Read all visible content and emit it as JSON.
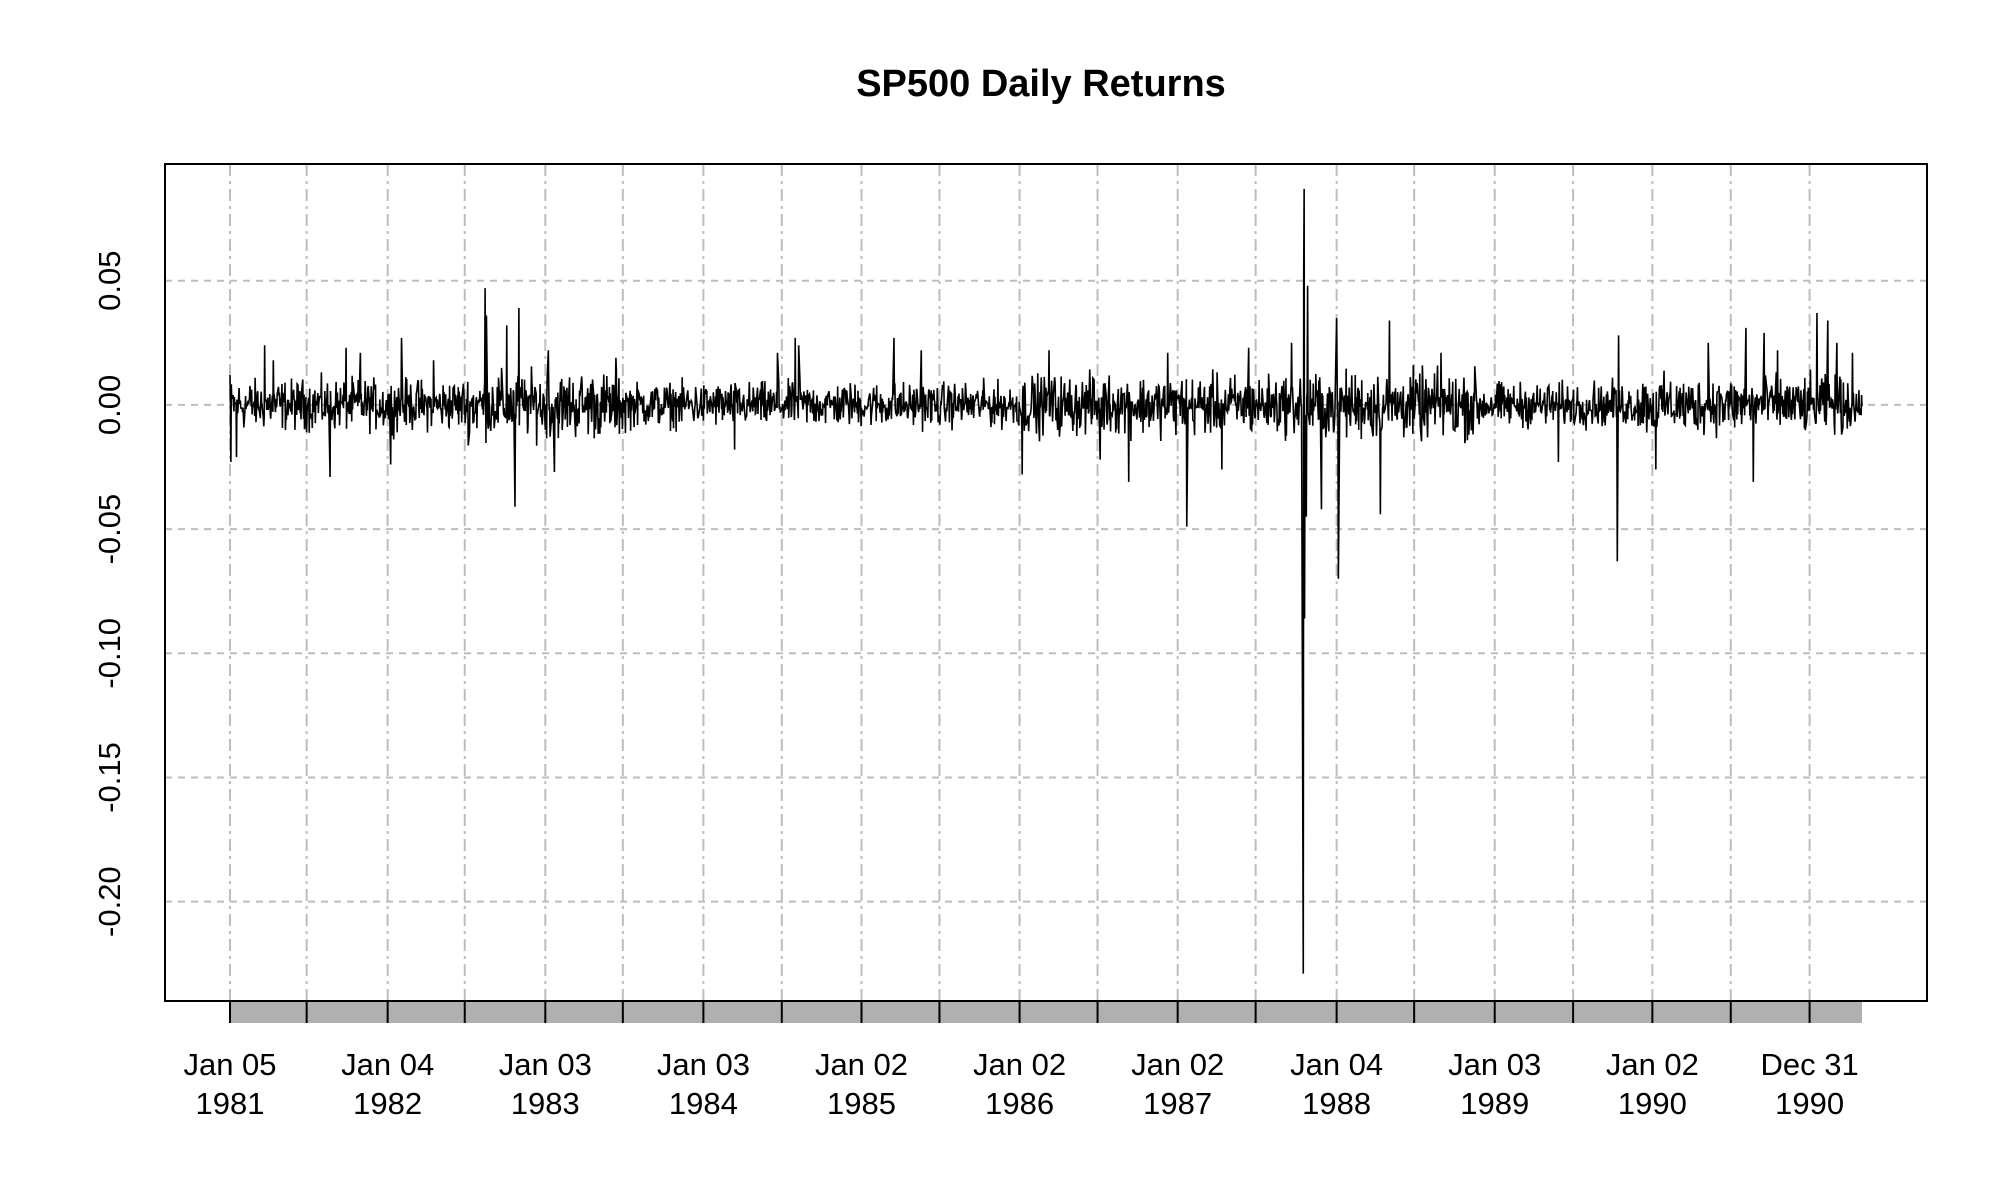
{
  "chart_data": {
    "type": "line",
    "title": "SP500 Daily Returns",
    "xlabel": "",
    "ylabel": "",
    "x_range": [
      "1981-01-05",
      "1991-05-01"
    ],
    "ylim": [
      -0.24,
      0.097
    ],
    "y_ticks": [
      {
        "value": 0.05,
        "label": "0.05"
      },
      {
        "value": 0.0,
        "label": "0.00"
      },
      {
        "value": -0.05,
        "label": "-0.05"
      },
      {
        "value": -0.1,
        "label": "-0.10"
      },
      {
        "value": -0.15,
        "label": "-0.15"
      },
      {
        "value": -0.2,
        "label": "-0.20"
      }
    ],
    "x_ticks": [
      {
        "date": "1981-01-05",
        "line1": "Jan 05",
        "line2": "1981"
      },
      {
        "date": "1982-01-04",
        "line1": "Jan 04",
        "line2": "1982"
      },
      {
        "date": "1983-01-03",
        "line1": "Jan 03",
        "line2": "1983"
      },
      {
        "date": "1984-01-03",
        "line1": "Jan 03",
        "line2": "1984"
      },
      {
        "date": "1985-01-02",
        "line1": "Jan 02",
        "line2": "1985"
      },
      {
        "date": "1986-01-02",
        "line1": "Jan 02",
        "line2": "1986"
      },
      {
        "date": "1987-01-02",
        "line1": "Jan 02",
        "line2": "1987"
      },
      {
        "date": "1988-01-04",
        "line1": "Jan 04",
        "line2": "1988"
      },
      {
        "date": "1989-01-03",
        "line1": "Jan 03",
        "line2": "1989"
      },
      {
        "date": "1990-01-02",
        "line1": "Jan 02",
        "line2": "1990"
      },
      {
        "date": "1990-12-31",
        "line1": "Dec 31",
        "line2": "1990"
      }
    ],
    "minor_ticks": [
      "1981-07-01",
      "1982-07-01",
      "1983-07-01",
      "1984-07-02",
      "1985-07-01",
      "1986-07-01",
      "1987-07-01",
      "1988-07-01",
      "1989-07-03",
      "1990-07-02"
    ],
    "grid": true,
    "series": [
      {
        "values": [
          {
            "date": "1981-01-05",
            "value": 0.012
          },
          {
            "date": "1981-01-07",
            "value": -0.023
          },
          {
            "date": "1981-01-20",
            "value": -0.021
          },
          {
            "date": "1981-03-26",
            "value": 0.024
          },
          {
            "date": "1981-04-15",
            "value": 0.018
          },
          {
            "date": "1981-08-24",
            "value": -0.029
          },
          {
            "date": "1981-09-30",
            "value": 0.023
          },
          {
            "date": "1981-11-02",
            "value": 0.021
          },
          {
            "date": "1982-01-11",
            "value": -0.024
          },
          {
            "date": "1982-02-05",
            "value": 0.027
          },
          {
            "date": "1982-04-20",
            "value": 0.018
          },
          {
            "date": "1982-08-17",
            "value": 0.047
          },
          {
            "date": "1982-08-20",
            "value": 0.036
          },
          {
            "date": "1982-10-06",
            "value": 0.032
          },
          {
            "date": "1982-10-25",
            "value": -0.041
          },
          {
            "date": "1982-11-03",
            "value": 0.039
          },
          {
            "date": "1983-01-24",
            "value": -0.027
          },
          {
            "date": "1983-01-10",
            "value": 0.022
          },
          {
            "date": "1983-06-15",
            "value": 0.019
          },
          {
            "date": "1984-03-15",
            "value": -0.018
          },
          {
            "date": "1984-06-22",
            "value": 0.021
          },
          {
            "date": "1984-08-02",
            "value": 0.027
          },
          {
            "date": "1984-08-10",
            "value": 0.024
          },
          {
            "date": "1985-03-18",
            "value": 0.027
          },
          {
            "date": "1985-05-20",
            "value": 0.022
          },
          {
            "date": "1986-01-08",
            "value": -0.028
          },
          {
            "date": "1986-03-11",
            "value": 0.022
          },
          {
            "date": "1986-07-07",
            "value": -0.022
          },
          {
            "date": "1986-09-11",
            "value": -0.031
          },
          {
            "date": "1986-12-10",
            "value": 0.021
          },
          {
            "date": "1987-01-23",
            "value": -0.049
          },
          {
            "date": "1987-04-14",
            "value": -0.026
          },
          {
            "date": "1987-06-15",
            "value": 0.023
          },
          {
            "date": "1987-09-22",
            "value": 0.025
          },
          {
            "date": "1987-10-16",
            "value": -0.052
          },
          {
            "date": "1987-10-19",
            "value": -0.229
          },
          {
            "date": "1987-10-20",
            "value": 0.053
          },
          {
            "date": "1987-10-21",
            "value": 0.087
          },
          {
            "date": "1987-10-22",
            "value": -0.086
          },
          {
            "date": "1987-10-26",
            "value": -0.045
          },
          {
            "date": "1987-10-29",
            "value": 0.048
          },
          {
            "date": "1987-11-30",
            "value": -0.042
          },
          {
            "date": "1988-01-04",
            "value": 0.035
          },
          {
            "date": "1988-01-08",
            "value": -0.07
          },
          {
            "date": "1988-04-14",
            "value": -0.044
          },
          {
            "date": "1988-05-05",
            "value": 0.034
          },
          {
            "date": "1988-09-01",
            "value": 0.021
          },
          {
            "date": "1989-05-30",
            "value": -0.023
          },
          {
            "date": "1989-10-13",
            "value": -0.063
          },
          {
            "date": "1989-10-16",
            "value": 0.028
          },
          {
            "date": "1990-01-10",
            "value": -0.026
          },
          {
            "date": "1990-05-11",
            "value": 0.025
          },
          {
            "date": "1990-08-06",
            "value": 0.031
          },
          {
            "date": "1990-08-23",
            "value": -0.031
          },
          {
            "date": "1990-09-17",
            "value": 0.029
          },
          {
            "date": "1990-10-18",
            "value": 0.022
          },
          {
            "date": "1991-01-17",
            "value": 0.037
          },
          {
            "date": "1991-02-11",
            "value": 0.034
          },
          {
            "date": "1991-03-04",
            "value": 0.025
          },
          {
            "date": "1991-04-09",
            "value": 0.021
          },
          {
            "date": "1991-04-30",
            "value": 0.004
          }
        ]
      }
    ]
  }
}
